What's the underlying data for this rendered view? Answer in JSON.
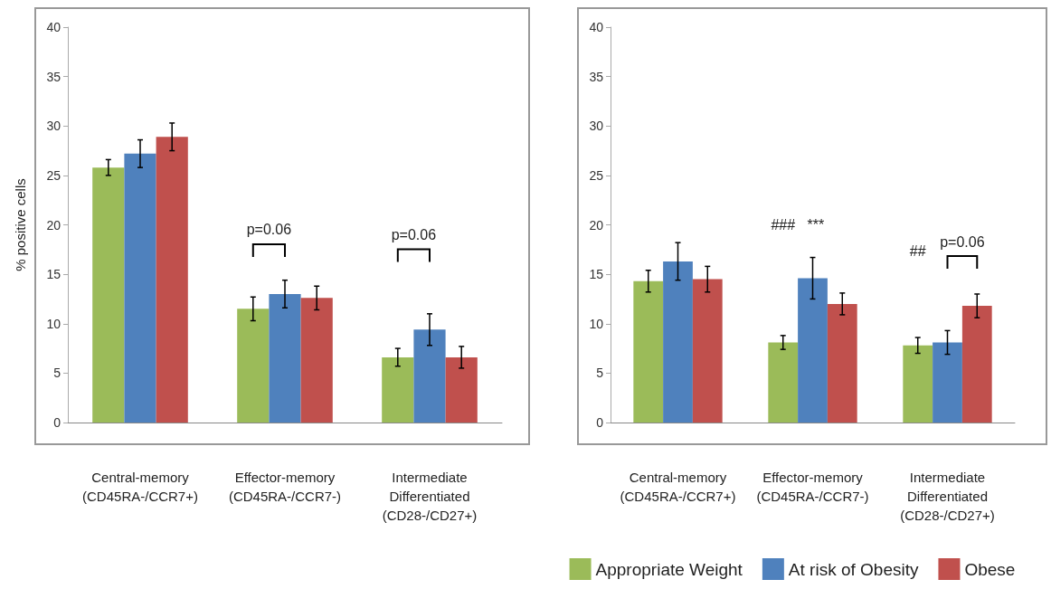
{
  "chart_data": [
    {
      "type": "bar",
      "ylabel": "% positive cells",
      "categories": [
        "Central-memory\n(CD45RA-/CCR7+)",
        "Effector-memory\n(CD45RA-/CCR7-)",
        "Intermediate\nDifferentiated\n(CD28-/CD27+)"
      ],
      "series": [
        {
          "color": "#9bbb59",
          "values": [
            25.8,
            11.5,
            6.6
          ],
          "errors": [
            0.8,
            1.2,
            0.9
          ]
        },
        {
          "color": "#4f81bd",
          "values": [
            27.2,
            13.0,
            9.4
          ],
          "errors": [
            1.4,
            1.4,
            1.6
          ]
        },
        {
          "color": "#c0504d",
          "values": [
            28.9,
            12.6,
            6.6
          ],
          "errors": [
            1.4,
            1.2,
            1.1
          ]
        }
      ],
      "ylim": [
        0,
        40
      ],
      "yticks": [
        0,
        5,
        10,
        15,
        20,
        25,
        30,
        35,
        40
      ],
      "grid": false,
      "legend": false,
      "annotations": [
        "p=0.06",
        "p=0.06"
      ]
    },
    {
      "type": "bar",
      "categories": [
        "Central-memory\n(CD45RA-/CCR7+)",
        "Effector-memory\n(CD45RA-/CCR7-)",
        "Intermediate\nDifferentiated\n(CD28-/CD27+)"
      ],
      "series": [
        {
          "name": "Appropriate Weight",
          "color": "#9bbb59",
          "values": [
            14.3,
            8.1,
            7.8
          ],
          "errors": [
            1.1,
            0.7,
            0.8
          ]
        },
        {
          "name": "At risk of Obesity",
          "color": "#4f81bd",
          "values": [
            16.3,
            14.6,
            8.1
          ],
          "errors": [
            1.9,
            2.1,
            1.2
          ]
        },
        {
          "name": "Obese",
          "color": "#c0504d",
          "values": [
            14.5,
            12.0,
            11.8
          ],
          "errors": [
            1.3,
            1.1,
            1.2
          ]
        }
      ],
      "ylim": [
        0,
        40
      ],
      "yticks": [
        0,
        5,
        10,
        15,
        20,
        25,
        30,
        35,
        40
      ],
      "grid": false,
      "legend": "bottom",
      "annotations": [
        "###",
        "***",
        "##",
        "p=0.06"
      ]
    }
  ]
}
